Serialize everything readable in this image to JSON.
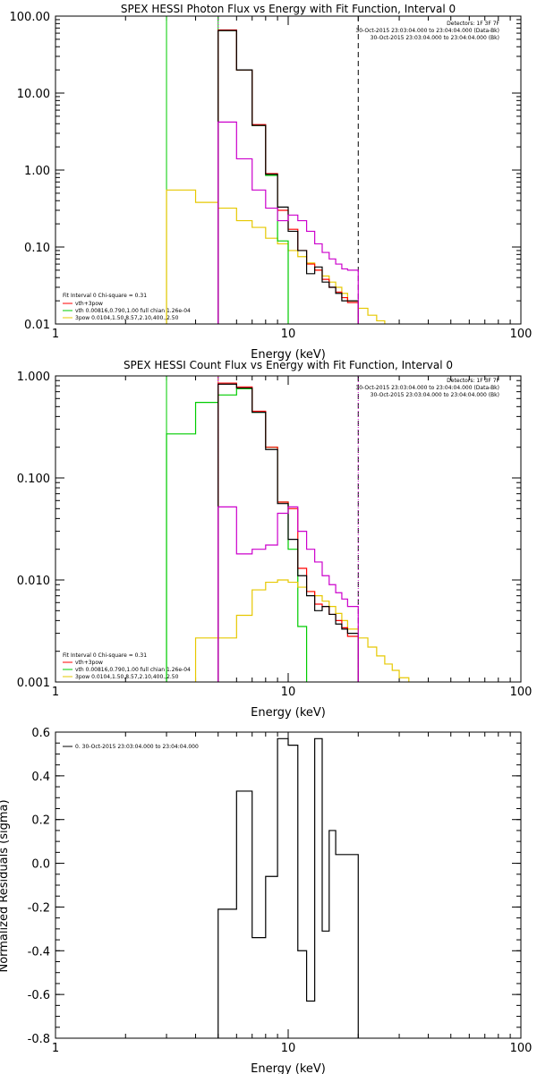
{
  "chart_data": [
    {
      "type": "line",
      "title": "SPEX HESSI Photon Flux vs Energy with Fit Function, Interval 0",
      "xlabel": "Energy (keV)",
      "ylabel": "",
      "x_scale": "log",
      "y_scale": "log",
      "xlim": [
        1,
        100
      ],
      "ylim": [
        0.01,
        100
      ],
      "x_ticks": [
        1,
        10,
        100
      ],
      "x_tick_labels": [
        "1",
        "10",
        "100"
      ],
      "y_ticks": [
        100,
        10,
        1,
        0.1,
        0.01
      ],
      "y_tick_labels": [
        "100.00",
        "10.00",
        "1.00",
        "0.10",
        "0.01"
      ],
      "detector_lines": [
        "Detectors: 1F 3F 7F",
        "30-Oct-2015 23:03:04.000 to 23:04:04.000 (Data-Bk)",
        "30-Oct-2015 23:03:04.000 to 23:04:04.000 (Bk)"
      ],
      "fit_label": "Fit Interval 0  Chi-square = 0.31",
      "legend": [
        {
          "label": "vth+3pow",
          "color": "#ff0000"
        },
        {
          "label": "vth 0.00816,0.790,1.00  full chian 1.26e-04",
          "color": "#00cc00"
        },
        {
          "label": "3pow 0.0104,1.50,8.57,2.10,400.,2.50",
          "color": "#e6c800"
        }
      ],
      "vlines": [
        {
          "x": 3.0,
          "color": "#00cc00",
          "style": "solid"
        },
        {
          "x": 5.0,
          "color": "#00cc00",
          "style": "solid"
        },
        {
          "x": 5.0,
          "color": "#cc00cc",
          "style": "dotted"
        },
        {
          "x": 20.0,
          "color": "#000000",
          "style": "dashed"
        }
      ],
      "series": [
        {
          "color": "#e6c800",
          "edges": [
            3,
            4,
            5,
            6,
            7,
            8,
            9,
            10,
            11,
            12,
            13,
            14,
            15,
            16,
            17,
            18,
            20,
            22,
            24,
            26,
            28
          ],
          "values": [
            0.55,
            0.38,
            0.32,
            0.22,
            0.18,
            0.13,
            0.11,
            0.09,
            0.075,
            0.062,
            0.05,
            0.042,
            0.035,
            0.03,
            0.025,
            0.02,
            0.016,
            0.013,
            0.011,
            0.0095
          ]
        },
        {
          "color": "#00cc00",
          "edges": [
            5,
            6,
            7,
            8,
            9,
            10
          ],
          "values": [
            65,
            20,
            3.8,
            0.85,
            0.12
          ]
        },
        {
          "color": "#ff0000",
          "edges": [
            5,
            6,
            7,
            8,
            9,
            10,
            11,
            12,
            13,
            14,
            15,
            16,
            17,
            18,
            20
          ],
          "values": [
            66,
            20,
            3.9,
            0.9,
            0.3,
            0.17,
            0.09,
            0.06,
            0.05,
            0.038,
            0.03,
            0.026,
            0.022,
            0.019
          ]
        },
        {
          "color": "#000000",
          "edges": [
            5,
            6,
            7,
            8,
            9,
            10,
            11,
            12,
            13,
            14,
            15,
            16,
            17,
            18,
            20
          ],
          "values": [
            65,
            20,
            3.8,
            0.88,
            0.33,
            0.16,
            0.09,
            0.045,
            0.055,
            0.035,
            0.03,
            0.025,
            0.02,
            0.02
          ]
        },
        {
          "color": "#cc00cc",
          "edges": [
            5,
            6,
            7,
            8,
            9,
            10,
            11,
            12,
            13,
            14,
            15,
            16,
            17,
            18,
            20
          ],
          "values": [
            4.2,
            1.4,
            0.55,
            0.32,
            0.22,
            0.26,
            0.22,
            0.16,
            0.11,
            0.085,
            0.07,
            0.06,
            0.052,
            0.05
          ]
        }
      ]
    },
    {
      "type": "line",
      "title": "SPEX HESSI Count Flux vs Energy with Fit Function, Interval 0",
      "xlabel": "Energy (keV)",
      "ylabel": "",
      "x_scale": "log",
      "y_scale": "log",
      "xlim": [
        1,
        100
      ],
      "ylim": [
        0.001,
        1
      ],
      "x_ticks": [
        1,
        10,
        100
      ],
      "x_tick_labels": [
        "1",
        "10",
        "100"
      ],
      "y_ticks": [
        1,
        0.1,
        0.01,
        0.001
      ],
      "y_tick_labels": [
        "1.000",
        "0.100",
        "0.010",
        "0.001"
      ],
      "detector_lines": [
        "Detectors: 1F 3F 7F",
        "30-Oct-2015 23:03:04.000 to 23:04:04.000 (Data-Bk)",
        "30-Oct-2015 23:03:04.000 to 23:04:04.000 (Bk)"
      ],
      "fit_label": "Fit Interval 0  Chi-square = 0.31",
      "legend": [
        {
          "label": "vth+3pow",
          "color": "#ff0000"
        },
        {
          "label": "vth 0.00816,0.790,1.00  full chian 1.26e-04",
          "color": "#00cc00"
        },
        {
          "label": "3pow 0.0104,1.50,8.57,2.10,400.,2.50",
          "color": "#e6c800"
        }
      ],
      "vlines": [
        {
          "x": 3.0,
          "color": "#00cc00",
          "style": "solid"
        },
        {
          "x": 5.0,
          "color": "#cc00cc",
          "style": "solid"
        },
        {
          "x": 5.0,
          "color": "#e6c800",
          "style": "dotted"
        },
        {
          "x": 20.0,
          "color": "#000000",
          "style": "dashed"
        },
        {
          "x": 20.0,
          "color": "#cc00cc",
          "style": "dotted"
        }
      ],
      "series": [
        {
          "color": "#00cc00",
          "edges": [
            3,
            4,
            5,
            6,
            7,
            8,
            9,
            10,
            11,
            12
          ],
          "values": [
            0.27,
            0.55,
            0.65,
            0.75,
            0.44,
            0.2,
            0.058,
            0.02,
            0.0035
          ]
        },
        {
          "color": "#e6c800",
          "edges": [
            4,
            5,
            6,
            7,
            8,
            9,
            10,
            11,
            12,
            13,
            14,
            15,
            16,
            17,
            18,
            20,
            22,
            24,
            26,
            28,
            30,
            33
          ],
          "values": [
            0.0027,
            0.0027,
            0.0045,
            0.008,
            0.0095,
            0.01,
            0.0095,
            0.0085,
            0.0077,
            0.007,
            0.0062,
            0.0055,
            0.0047,
            0.004,
            0.0033,
            0.0027,
            0.0022,
            0.0018,
            0.0015,
            0.0013,
            0.0011
          ]
        },
        {
          "color": "#ff0000",
          "edges": [
            5,
            6,
            7,
            8,
            9,
            10,
            11,
            12,
            13,
            14,
            15,
            16,
            17,
            18,
            20
          ],
          "values": [
            0.85,
            0.78,
            0.45,
            0.2,
            0.058,
            0.05,
            0.013,
            0.0077,
            0.0058,
            0.0055,
            0.0046,
            0.004,
            0.0034,
            0.0028
          ]
        },
        {
          "color": "#000000",
          "edges": [
            5,
            6,
            7,
            8,
            9,
            10,
            11,
            12,
            13,
            14,
            15,
            16,
            17,
            18,
            20
          ],
          "values": [
            0.83,
            0.76,
            0.44,
            0.19,
            0.056,
            0.025,
            0.011,
            0.007,
            0.005,
            0.0055,
            0.0046,
            0.0037,
            0.0033,
            0.003
          ]
        },
        {
          "color": "#cc00cc",
          "edges": [
            5,
            6,
            7,
            8,
            9,
            10,
            11,
            12,
            13,
            14,
            15,
            16,
            17,
            18,
            20
          ],
          "values": [
            0.052,
            0.018,
            0.02,
            0.022,
            0.045,
            0.052,
            0.03,
            0.02,
            0.015,
            0.011,
            0.009,
            0.0075,
            0.0065,
            0.0055
          ]
        }
      ]
    },
    {
      "type": "line",
      "title": "",
      "xlabel": "Energy (keV)",
      "ylabel": "Normalized Residuals (sigma)",
      "x_scale": "log",
      "y_scale": "linear",
      "xlim": [
        1,
        100
      ],
      "ylim": [
        -0.8,
        0.6
      ],
      "x_ticks": [
        1,
        10,
        100
      ],
      "x_tick_labels": [
        "1",
        "10",
        "100"
      ],
      "y_ticks": [
        0.6,
        0.4,
        0.2,
        0.0,
        -0.2,
        -0.4,
        -0.6,
        -0.8
      ],
      "y_tick_labels": [
        "0.6",
        "0.4",
        "0.2",
        "0.0",
        "-0.2",
        "-0.4",
        "-0.6",
        "-0.8"
      ],
      "legend": [
        {
          "label": "0. 30-Oct-2015 23:03:04.000 to 23:04:04.000",
          "color": "#000000"
        }
      ],
      "series": [
        {
          "color": "#000000",
          "edges": [
            5,
            6,
            7,
            8,
            9,
            10,
            11,
            12,
            13,
            14,
            15,
            16,
            17,
            18,
            20
          ],
          "values": [
            -0.21,
            0.33,
            -0.34,
            -0.06,
            0.57,
            0.54,
            -0.4,
            -0.63,
            0.57,
            -0.31,
            0.15,
            0.04,
            0.04,
            0.04
          ]
        }
      ]
    }
  ]
}
